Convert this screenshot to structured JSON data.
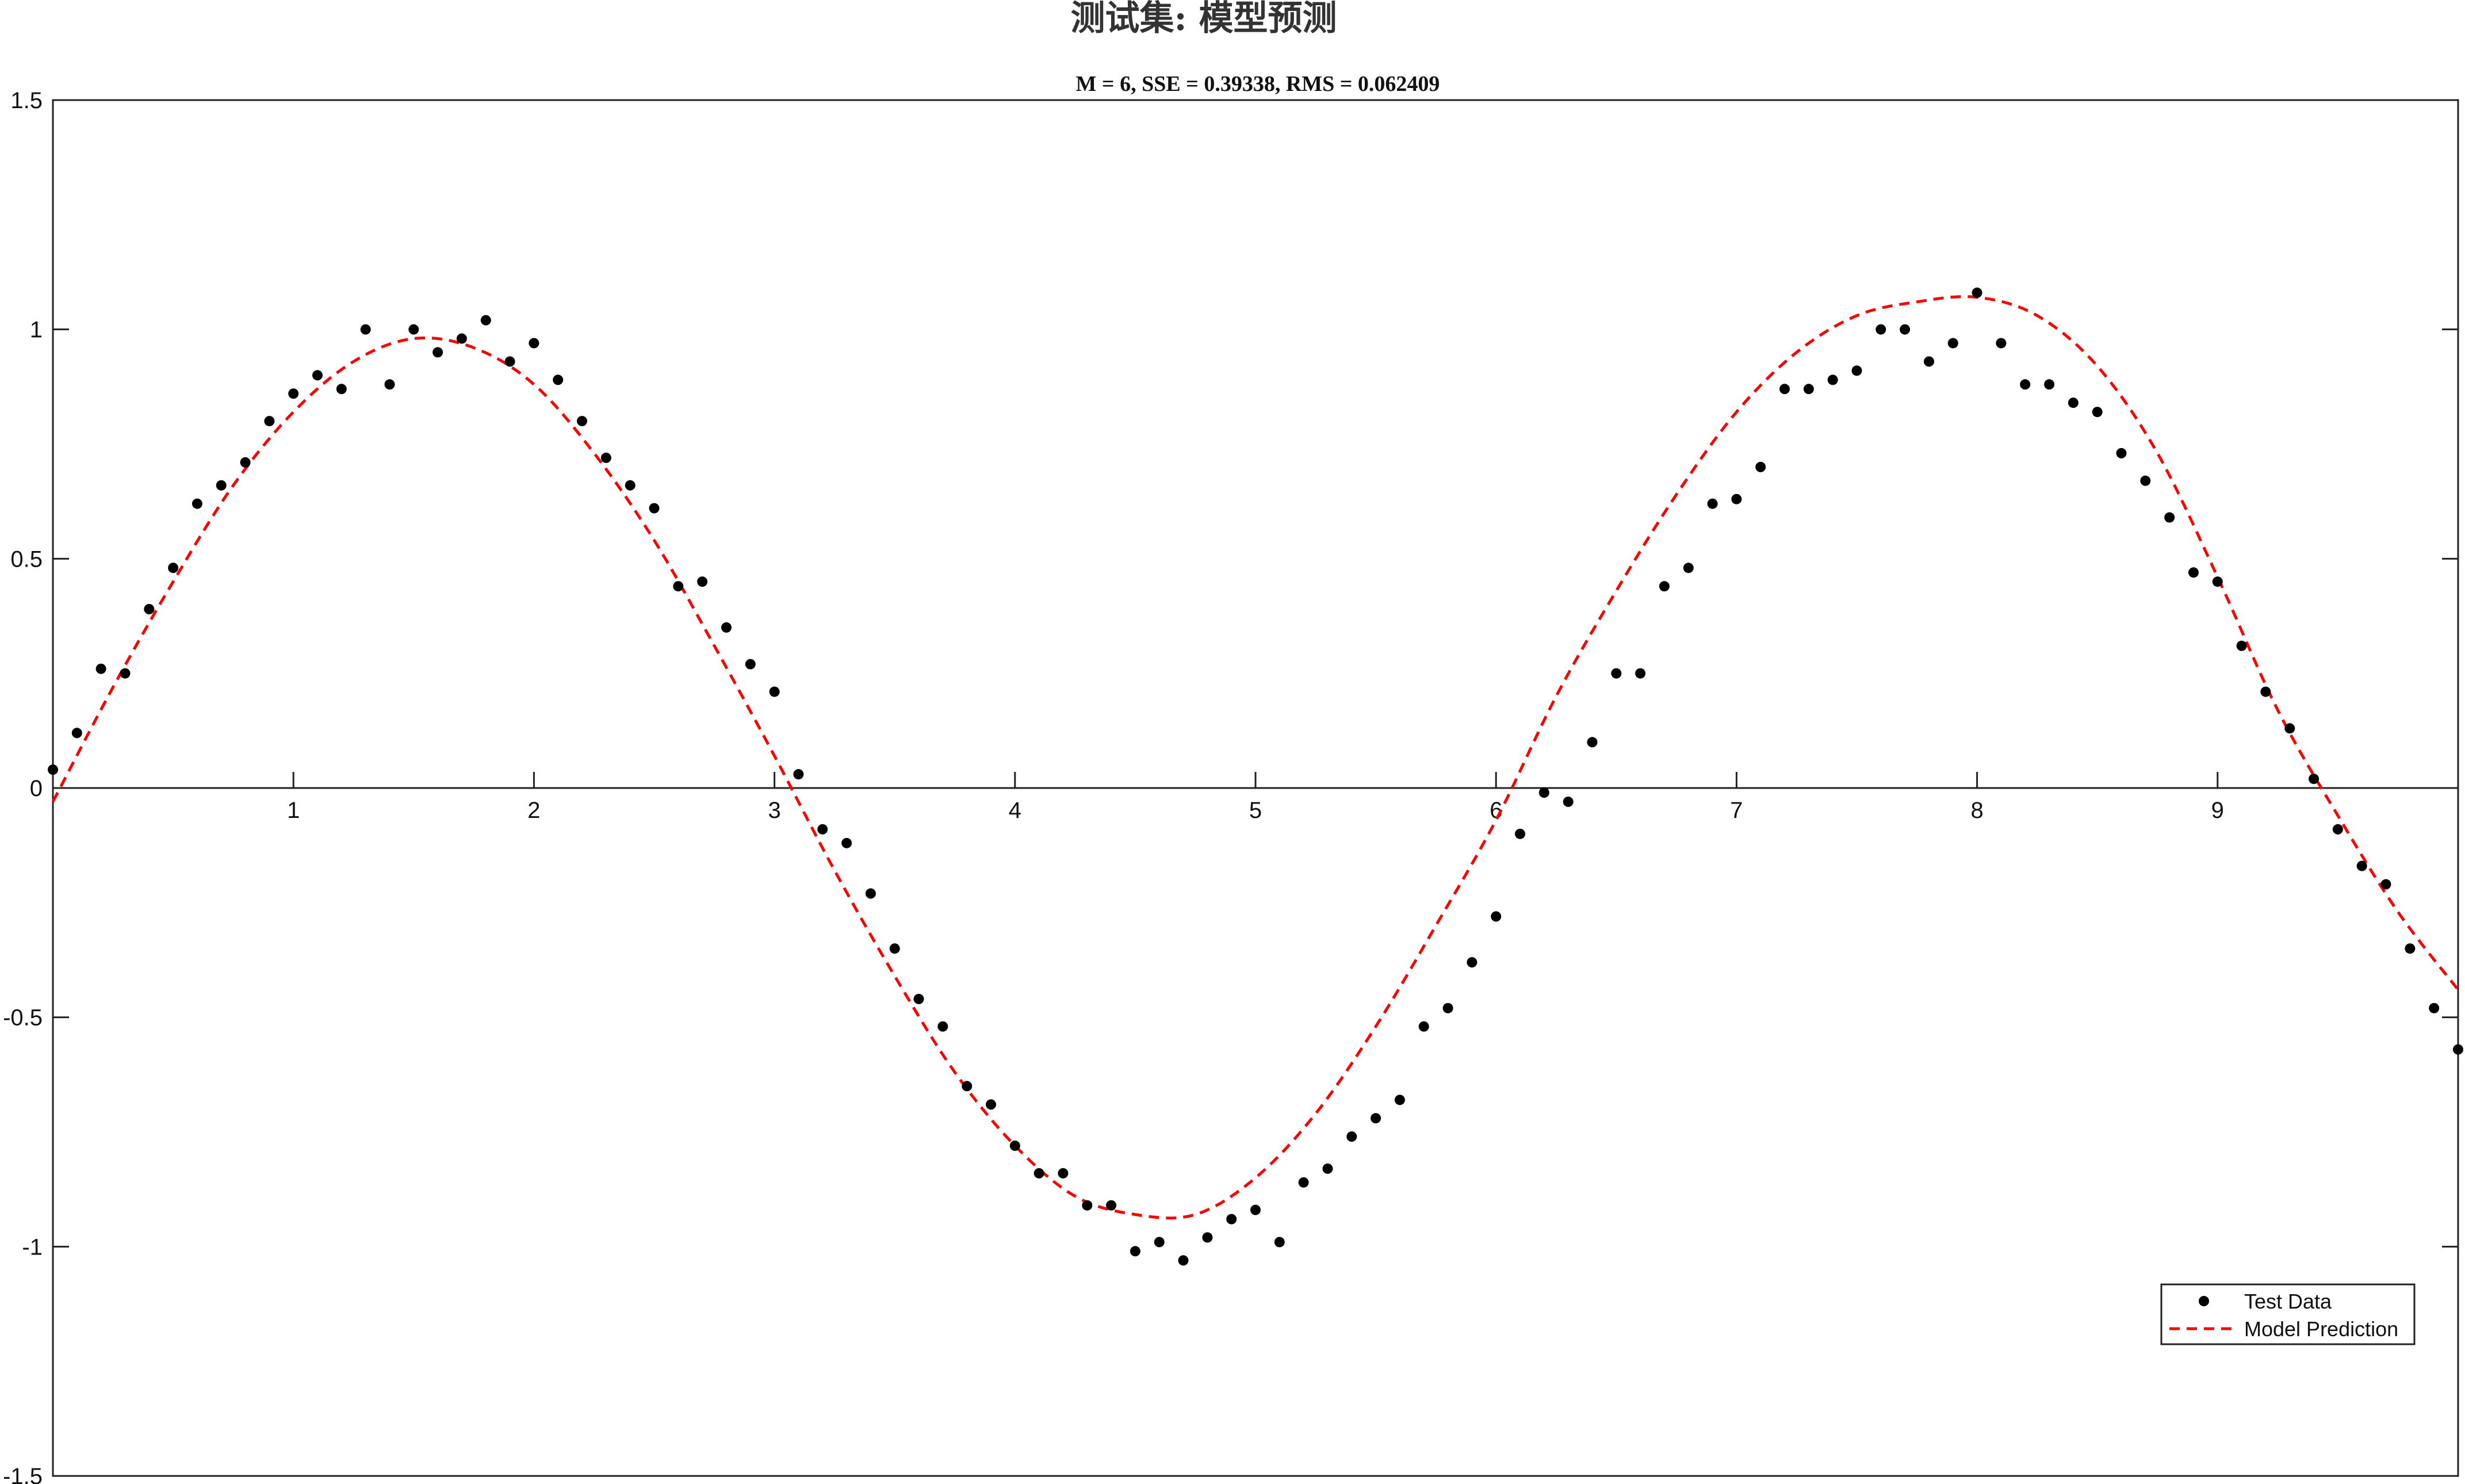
{
  "chart_data": {
    "type": "scatter",
    "title": "测试集: 模型预测",
    "subtitle": "M = 6, SSE = 0.39338, RMS = 0.062409",
    "xlabel": "",
    "ylabel": "",
    "xlim": [
      0,
      10
    ],
    "ylim": [
      -1.5,
      1.5
    ],
    "x_ticks": [
      1,
      2,
      3,
      4,
      5,
      6,
      7,
      8,
      9
    ],
    "y_ticks": [
      -1.5,
      -1,
      -0.5,
      0,
      0.5,
      1,
      1.5
    ],
    "x_tick_labels": [
      "1",
      "2",
      "3",
      "4",
      "5",
      "6",
      "7",
      "8",
      "9"
    ],
    "y_tick_labels": [
      "-1.5",
      "-1",
      "-0.5",
      "0",
      "0.5",
      "1",
      "1.5"
    ],
    "grid": false,
    "legend_position": "bottom-right",
    "series": [
      {
        "name": "Test Data",
        "style": "markers",
        "color": "#000000",
        "x": [
          0.0,
          0.1,
          0.2,
          0.3,
          0.4,
          0.5,
          0.6,
          0.7,
          0.8,
          0.9,
          1.0,
          1.1,
          1.2,
          1.3,
          1.4,
          1.5,
          1.6,
          1.7,
          1.8,
          1.9,
          2.0,
          2.1,
          2.2,
          2.3,
          2.4,
          2.5,
          2.6,
          2.7,
          2.8,
          2.9,
          3.0,
          3.1,
          3.2,
          3.3,
          3.4,
          3.5,
          3.6,
          3.7,
          3.8,
          3.9,
          4.0,
          4.1,
          4.2,
          4.3,
          4.4,
          4.5,
          4.6,
          4.7,
          4.8,
          4.9,
          5.0,
          5.1,
          5.2,
          5.3,
          5.4,
          5.5,
          5.6,
          5.7,
          5.8,
          5.9,
          6.0,
          6.1,
          6.2,
          6.3,
          6.4,
          6.5,
          6.6,
          6.7,
          6.8,
          6.9,
          7.0,
          7.1,
          7.2,
          7.3,
          7.4,
          7.5,
          7.6,
          7.7,
          7.8,
          7.9,
          8.0,
          8.1,
          8.2,
          8.3,
          8.4,
          8.5,
          8.6,
          8.7,
          8.8,
          8.9,
          9.0,
          9.1,
          9.2,
          9.3,
          9.4,
          9.5,
          9.6,
          9.7,
          9.8,
          9.9,
          10.0
        ],
        "y": [
          0.04,
          0.12,
          0.26,
          0.25,
          0.39,
          0.48,
          0.62,
          0.66,
          0.71,
          0.8,
          0.86,
          0.9,
          0.87,
          1.0,
          0.88,
          1.0,
          0.95,
          0.98,
          1.02,
          0.93,
          0.97,
          0.89,
          0.8,
          0.72,
          0.66,
          0.61,
          0.44,
          0.45,
          0.35,
          0.27,
          0.21,
          0.03,
          -0.09,
          -0.12,
          -0.23,
          -0.35,
          -0.46,
          -0.52,
          -0.65,
          -0.69,
          -0.78,
          -0.84,
          -0.84,
          -0.91,
          -0.91,
          -1.01,
          -0.99,
          -1.03,
          -0.98,
          -0.94,
          -0.92,
          -0.99,
          -0.86,
          -0.83,
          -0.76,
          -0.72,
          -0.68,
          -0.52,
          -0.48,
          -0.38,
          -0.28,
          -0.1,
          -0.01,
          -0.03,
          0.1,
          0.25,
          0.25,
          0.44,
          0.48,
          0.62,
          0.63,
          0.7,
          0.87,
          0.87,
          0.89,
          0.91,
          1.0,
          1.0,
          0.93,
          0.97,
          1.08,
          0.97,
          0.88,
          0.88,
          0.84,
          0.82,
          0.73,
          0.67,
          0.59,
          0.47,
          0.45,
          0.31,
          0.21,
          0.13,
          0.02,
          -0.09,
          -0.17,
          -0.21,
          -0.35,
          -0.48,
          -0.57
        ]
      },
      {
        "name": "Model Prediction",
        "style": "dashed-line",
        "color": "#ff0000",
        "x": [
          0.0,
          0.25,
          0.5,
          0.75,
          1.0,
          1.25,
          1.5,
          1.75,
          2.0,
          2.25,
          2.5,
          2.75,
          3.0,
          3.25,
          3.5,
          3.75,
          4.0,
          4.25,
          4.5,
          4.75,
          5.0,
          5.25,
          5.5,
          5.75,
          6.0,
          6.25,
          6.5,
          6.75,
          7.0,
          7.25,
          7.5,
          7.75,
          8.0,
          8.25,
          8.5,
          8.75,
          9.0,
          9.25,
          9.5,
          9.75,
          10.0
        ],
        "y": [
          -0.03,
          0.22,
          0.45,
          0.66,
          0.82,
          0.93,
          0.98,
          0.96,
          0.88,
          0.73,
          0.54,
          0.31,
          0.07,
          -0.18,
          -0.41,
          -0.62,
          -0.78,
          -0.89,
          -0.93,
          -0.93,
          -0.85,
          -0.71,
          -0.52,
          -0.3,
          -0.07,
          0.2,
          0.43,
          0.64,
          0.82,
          0.95,
          1.03,
          1.06,
          1.07,
          1.03,
          0.92,
          0.73,
          0.46,
          0.17,
          -0.06,
          -0.27,
          -0.44
        ]
      }
    ]
  }
}
